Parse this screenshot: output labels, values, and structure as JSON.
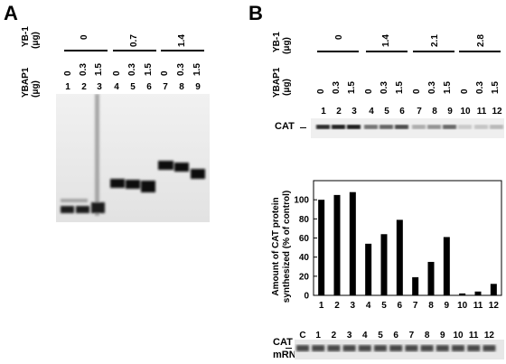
{
  "panelA": {
    "label": "A",
    "yb1_label": "YB-1",
    "yb1_unit": "(μg)",
    "ybap1_label": "YBAP1",
    "ybap1_unit": "(μg)",
    "yb1_groups": [
      "0",
      "0.7",
      "1.4"
    ],
    "ybap1_doses": [
      "0",
      "0.3",
      "1.5",
      "0",
      "0.3",
      "1.5",
      "0",
      "0.3",
      "1.5"
    ],
    "lanes": [
      "1",
      "2",
      "3",
      "4",
      "5",
      "6",
      "7",
      "8",
      "9"
    ]
  },
  "panelB": {
    "label": "B",
    "yb1_label": "YB-1",
    "yb1_unit": "(μg)",
    "ybap1_label": "YBAP1",
    "ybap1_unit": "(μg)",
    "yb1_groups": [
      "0",
      "1.4",
      "2.1",
      "2.8"
    ],
    "ybap1_doses": [
      "0",
      "0.3",
      "1.5",
      "0",
      "0.3",
      "1.5",
      "0",
      "0.3",
      "1.5",
      "0",
      "0.3",
      "1.5"
    ],
    "lanes": [
      "1",
      "2",
      "3",
      "4",
      "5",
      "6",
      "7",
      "8",
      "9",
      "10",
      "11",
      "12"
    ],
    "cat_label": "CAT",
    "mrna_label_1": "CAT",
    "mrna_label_2": "mRNA",
    "mrna_lanes": [
      "C",
      "1",
      "2",
      "3",
      "4",
      "5",
      "6",
      "7",
      "8",
      "9",
      "10",
      "11",
      "12"
    ]
  },
  "chart_data": {
    "type": "bar",
    "categories": [
      "1",
      "2",
      "3",
      "4",
      "5",
      "6",
      "7",
      "8",
      "9",
      "10",
      "11",
      "12"
    ],
    "values": [
      100,
      105,
      108,
      54,
      64,
      79,
      19,
      35,
      61,
      2,
      4,
      12
    ],
    "ylabel_1": "Amount of CAT protein",
    "ylabel_2": "synthesized (% of control)",
    "yticks": [
      "0",
      "20",
      "40",
      "60",
      "80",
      "100"
    ],
    "ylim": [
      0,
      120
    ],
    "bar_color": "#000000",
    "grid": false
  }
}
